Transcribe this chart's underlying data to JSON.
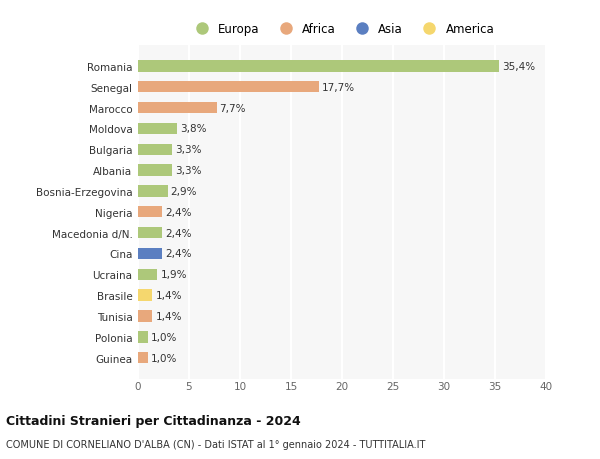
{
  "countries": [
    "Guinea",
    "Polonia",
    "Tunisia",
    "Brasile",
    "Ucraina",
    "Cina",
    "Macedonia d/N.",
    "Nigeria",
    "Bosnia-Erzegovina",
    "Albania",
    "Bulgaria",
    "Moldova",
    "Marocco",
    "Senegal",
    "Romania"
  ],
  "values": [
    1.0,
    1.0,
    1.4,
    1.4,
    1.9,
    2.4,
    2.4,
    2.4,
    2.9,
    3.3,
    3.3,
    3.8,
    7.7,
    17.7,
    35.4
  ],
  "labels": [
    "1,0%",
    "1,0%",
    "1,4%",
    "1,4%",
    "1,9%",
    "2,4%",
    "2,4%",
    "2,4%",
    "2,9%",
    "3,3%",
    "3,3%",
    "3,8%",
    "7,7%",
    "17,7%",
    "35,4%"
  ],
  "continents": [
    "Africa",
    "Europa",
    "Africa",
    "America",
    "Europa",
    "Asia",
    "Europa",
    "Africa",
    "Europa",
    "Europa",
    "Europa",
    "Europa",
    "Africa",
    "Africa",
    "Europa"
  ],
  "continent_colors": {
    "Europa": "#adc87a",
    "Africa": "#e8a87c",
    "Asia": "#5b7fc1",
    "America": "#f5d76e"
  },
  "legend_order": [
    "Europa",
    "Africa",
    "Asia",
    "America"
  ],
  "bg_color": "#ffffff",
  "plot_bg_color": "#f7f7f7",
  "grid_color": "#ffffff",
  "title1": "Cittadini Stranieri per Cittadinanza - 2024",
  "title2": "COMUNE DI CORNELIANO D'ALBA (CN) - Dati ISTAT al 1° gennaio 2024 - TUTTITALIA.IT",
  "xlim": [
    0,
    40
  ],
  "xticks": [
    0,
    5,
    10,
    15,
    20,
    25,
    30,
    35,
    40
  ],
  "bar_height": 0.55
}
